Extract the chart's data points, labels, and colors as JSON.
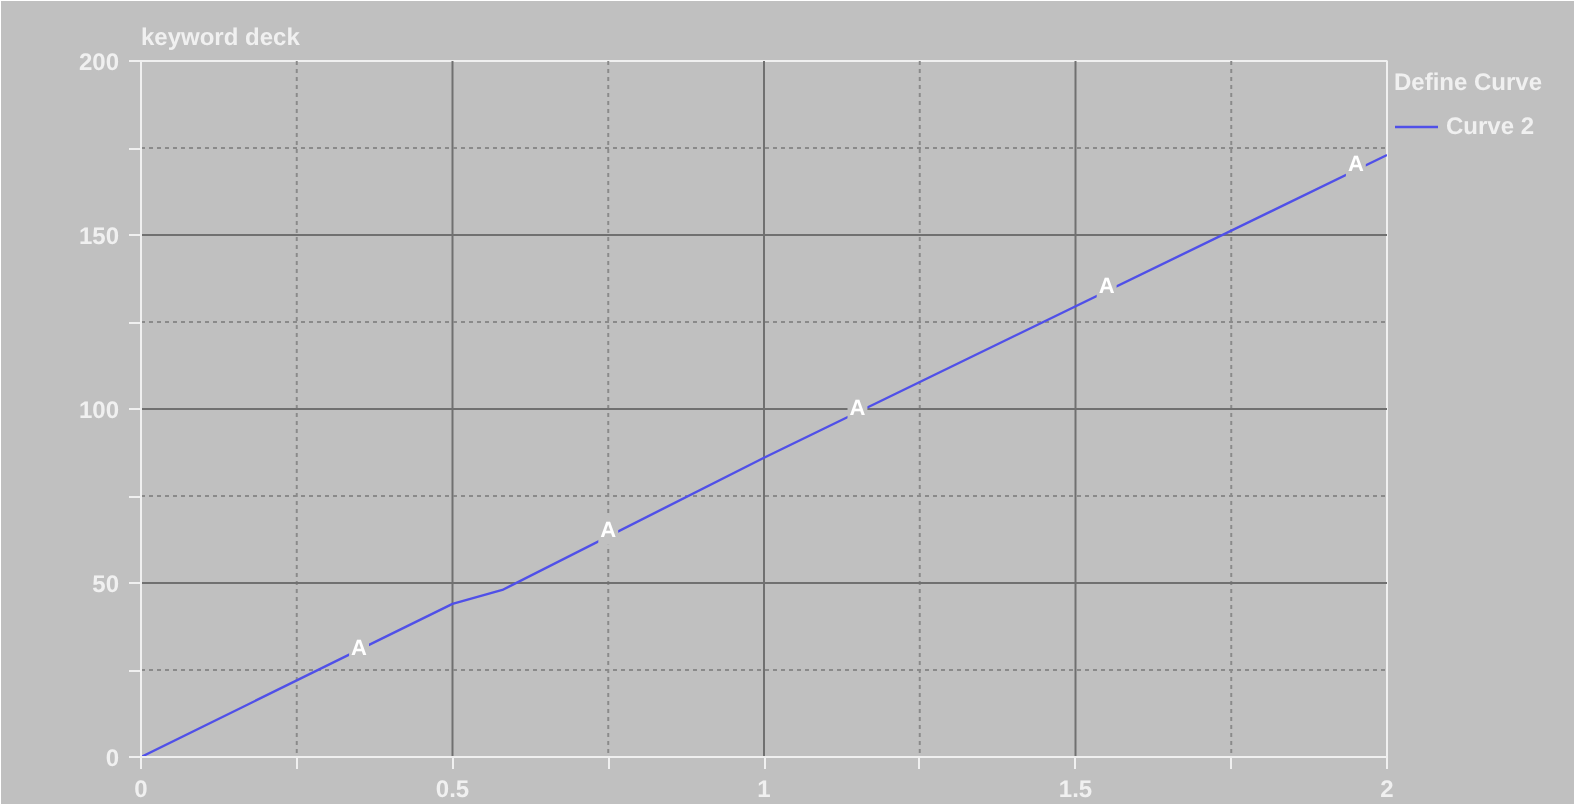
{
  "chart_data": {
    "type": "line",
    "title": "keyword deck",
    "legend_title": "Define Curve",
    "x": [
      0,
      0.5,
      0.58,
      1,
      2
    ],
    "series": [
      {
        "name": "Curve 2",
        "color": "#5050e8",
        "values": [
          0,
          44,
          48,
          86,
          173
        ]
      }
    ],
    "xlim": [
      0,
      2
    ],
    "ylim": [
      0,
      200
    ],
    "xticks": [
      0,
      {
        "value": 0.25,
        "label": null
      },
      0.5,
      {
        "value": 0.75,
        "label": null
      },
      1,
      {
        "value": 1.25,
        "label": null
      },
      1.5,
      {
        "value": 1.75,
        "label": null
      },
      2
    ],
    "yticks": [
      0,
      {
        "value": 25,
        "label": null
      },
      50,
      {
        "value": 75,
        "label": null
      },
      100,
      {
        "value": 125,
        "label": null
      },
      150,
      {
        "value": 175,
        "label": null
      },
      200
    ],
    "grid": true,
    "legend": "top right",
    "line_style": "solid",
    "annotations": [
      {
        "text": "A",
        "x": 0.35,
        "y": 31
      },
      {
        "text": "A",
        "x": 0.75,
        "y": 65
      },
      {
        "text": "A",
        "x": 1.15,
        "y": 100
      },
      {
        "text": "A",
        "x": 1.55,
        "y": 135
      },
      {
        "text": "A",
        "x": 1.95,
        "y": 170
      }
    ]
  }
}
